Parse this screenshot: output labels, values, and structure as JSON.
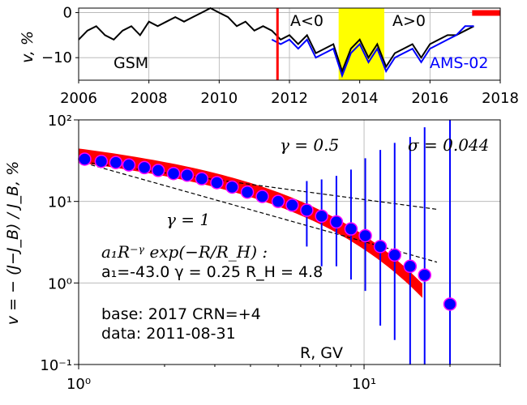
{
  "chart_data": [
    {
      "type": "line",
      "ylabel": "v, %",
      "xlim": [
        2006,
        2018
      ],
      "ylim": [
        -15,
        1
      ],
      "x_ticks": [
        "2006",
        "2008",
        "2010",
        "2012",
        "2014",
        "2016",
        "2018"
      ],
      "y_ticks": [
        "0",
        "−10"
      ],
      "grid": true,
      "label_gsm": "GSM",
      "label_ams": "AMS-02",
      "label_aneg": "A<0",
      "label_apos": "A>0",
      "colors": {
        "gsm": "#000000",
        "ams": "#0000ff",
        "marker": "#ff0000",
        "reversal": "#ffff00"
      },
      "marker_line_x": 2011.66,
      "base_bar": [
        2017.2,
        2018.0
      ],
      "reversal_band": [
        2013.4,
        2014.7
      ],
      "series": [
        {
          "name": "GSM",
          "x": [
            2006.0,
            2006.25,
            2006.5,
            2006.75,
            2007.0,
            2007.25,
            2007.5,
            2007.75,
            2008.0,
            2008.25,
            2008.5,
            2008.75,
            2009.0,
            2009.25,
            2009.5,
            2009.75,
            2010.0,
            2010.25,
            2010.5,
            2010.75,
            2011.0,
            2011.25,
            2011.5,
            2011.75,
            2012.0,
            2012.25,
            2012.5,
            2012.75,
            2013.0,
            2013.25,
            2013.5,
            2013.75,
            2014.0,
            2014.25,
            2014.5,
            2014.75,
            2015.0,
            2015.25,
            2015.5,
            2015.75,
            2016.0,
            2016.25,
            2016.5,
            2016.75,
            2017.0,
            2017.25
          ],
          "values": [
            -6,
            -4,
            -3,
            -5,
            -6,
            -4,
            -3,
            -5,
            -2,
            -3,
            -2,
            -1,
            -2,
            -1,
            0,
            1,
            0,
            -1,
            -3,
            -2,
            -4,
            -3,
            -4,
            -6,
            -5,
            -7,
            -5,
            -9,
            -8,
            -7,
            -13,
            -8,
            -6,
            -10,
            -7,
            -12,
            -9,
            -8,
            -7,
            -10,
            -7,
            -6,
            -5,
            -5,
            -4,
            -3
          ]
        },
        {
          "name": "AMS-02",
          "x": [
            2011.5,
            2011.75,
            2012.0,
            2012.25,
            2012.5,
            2012.75,
            2013.0,
            2013.25,
            2013.5,
            2013.75,
            2014.0,
            2014.25,
            2014.5,
            2014.75,
            2015.0,
            2015.25,
            2015.5,
            2015.75,
            2016.0,
            2016.25,
            2016.5,
            2016.75,
            2017.0,
            2017.25
          ],
          "values": [
            -6,
            -7,
            -6,
            -8,
            -6,
            -10,
            -9,
            -8,
            -14,
            -9,
            -7,
            -11,
            -8,
            -13,
            -10,
            -9,
            -8,
            -11,
            -8,
            -7,
            -6,
            -5,
            -3,
            -3
          ]
        }
      ]
    },
    {
      "type": "scatter",
      "xscale": "log",
      "yscale": "log",
      "xlabel": "R, GV",
      "ylabel": "v = − (J−J_B) / J_B, %",
      "xlim": [
        1,
        30
      ],
      "ylim": [
        0.1,
        100
      ],
      "x_ticks": [
        "10⁰",
        "10¹"
      ],
      "y_ticks": [
        "10²",
        "10¹",
        "10⁰",
        "10⁻¹"
      ],
      "grid": true,
      "gamma1_label": "γ = 0.5",
      "gamma2_label": "γ = 1",
      "sigma_label": "σ = 0.044",
      "fit_formula": "a₁R⁻ᵞ exp(−R/R_H) :",
      "fit_params": "a₁=-43.0  γ = 0.25  R_H =  4.8",
      "base_text": "base: 2017   CRN=+4",
      "data_date": "data: 2011-08-31",
      "colors": {
        "points": "#0000ff",
        "edge": "#ff00ff",
        "fit_band": "#ff0000",
        "errorbar": "#0000ff",
        "guide": "#000000"
      },
      "x": [
        1.05,
        1.2,
        1.35,
        1.5,
        1.7,
        1.9,
        2.15,
        2.4,
        2.7,
        3.05,
        3.45,
        3.9,
        4.4,
        5.0,
        5.6,
        6.3,
        7.1,
        8.0,
        9.0,
        10.1,
        11.4,
        12.8,
        14.5,
        16.3,
        20.0
      ],
      "y": [
        33,
        31,
        30,
        28,
        26,
        24,
        22,
        21,
        19,
        17,
        15,
        13,
        11.5,
        10,
        9,
        7.8,
        6.6,
        5.6,
        4.6,
        3.8,
        2.8,
        2.2,
        1.6,
        1.25,
        0.55
      ],
      "err_hi": [
        1,
        1,
        1,
        1,
        1,
        1,
        1,
        1,
        1,
        1,
        1,
        1,
        1,
        1,
        1,
        10,
        12,
        15,
        20,
        30,
        40,
        50,
        60,
        80,
        100
      ],
      "err_lo": [
        1,
        1,
        1,
        1,
        1,
        1,
        1,
        1,
        1,
        1,
        1,
        1,
        1,
        1,
        1,
        5,
        5,
        4,
        3.5,
        3,
        2.5,
        2,
        1.5,
        1.2,
        0.5
      ],
      "guide_gamma05": {
        "x": [
          1.0,
          18.0
        ],
        "y": [
          31,
          8
        ]
      },
      "guide_gamma1": {
        "x": [
          1.0,
          18.0
        ],
        "y": [
          31,
          1.8
        ]
      },
      "fit_band_x": [
        1.0,
        16.0
      ]
    }
  ]
}
